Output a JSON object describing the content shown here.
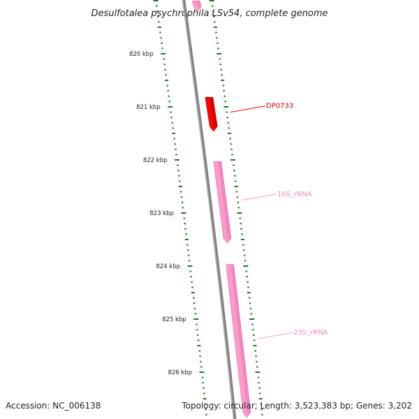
{
  "title": "Desulfotalea psychrophila LSv54, complete genome",
  "accession_text": "Accession: NC_006138",
  "topology_text": "Topology: circular; Length: 3,523,383 bp; Genes: 3,202",
  "colors": {
    "backbone": "#808080",
    "ticks": "#1a7a1a",
    "gene": "#ff0000",
    "rrna": "#ff99cc"
  },
  "ticks": [
    {
      "kbp": 820,
      "label": "820 kbp"
    },
    {
      "kbp": 821,
      "label": "821 kbp"
    },
    {
      "kbp": 822,
      "label": "822 kbp"
    },
    {
      "kbp": 823,
      "label": "823 kbp"
    },
    {
      "kbp": 824,
      "label": "824 kbp"
    },
    {
      "kbp": 825,
      "label": "825 kbp"
    },
    {
      "kbp": 826,
      "label": "826 kbp"
    }
  ],
  "features": [
    {
      "name": "",
      "type": "rRNA",
      "start_kbp": 819.0,
      "end_kbp": 819.2
    },
    {
      "name": "DP0733",
      "type": "gene",
      "start_kbp": 820.82,
      "end_kbp": 821.46,
      "label": "DP0733"
    },
    {
      "name": "16S_rRNA",
      "type": "rRNA",
      "start_kbp": 822.03,
      "end_kbp": 823.57,
      "label": "16S_rRNA"
    },
    {
      "name": "23S_rRNA",
      "type": "rRNA",
      "start_kbp": 823.97,
      "end_kbp": 826.85,
      "label": "23S_rRNA"
    }
  ]
}
